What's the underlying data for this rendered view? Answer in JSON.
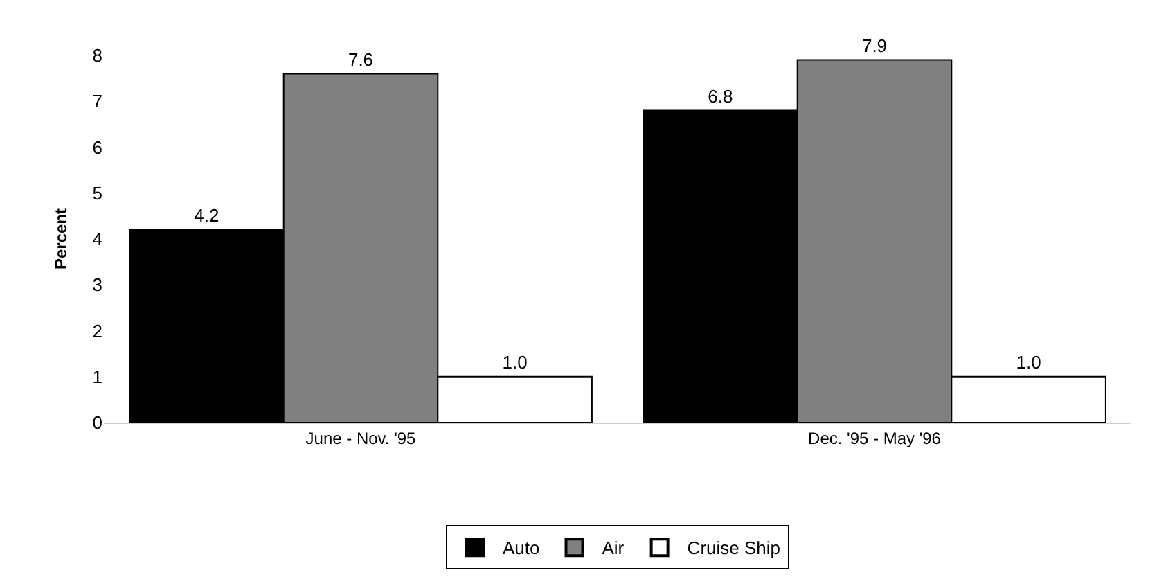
{
  "chart_data": {
    "type": "bar",
    "ylabel": "Percent",
    "categories": [
      "June - Nov. '95",
      "Dec. '95 - May '96"
    ],
    "series": [
      {
        "name": "Auto",
        "color": "#000000",
        "values": [
          4.2,
          6.8
        ],
        "value_labels": [
          "4.2",
          "6.8"
        ]
      },
      {
        "name": "Air",
        "color": "#808080",
        "values": [
          7.6,
          7.9
        ],
        "value_labels": [
          "7.6",
          "7.9"
        ]
      },
      {
        "name": "Cruise Ship",
        "color": "#ffffff",
        "values": [
          1.0,
          1.0
        ],
        "value_labels": [
          "1.0",
          "1.0"
        ]
      }
    ],
    "ylim": [
      0,
      8
    ],
    "yticks": [
      0,
      1,
      2,
      3,
      4,
      5,
      6,
      7,
      8
    ],
    "legend": "bottom"
  }
}
